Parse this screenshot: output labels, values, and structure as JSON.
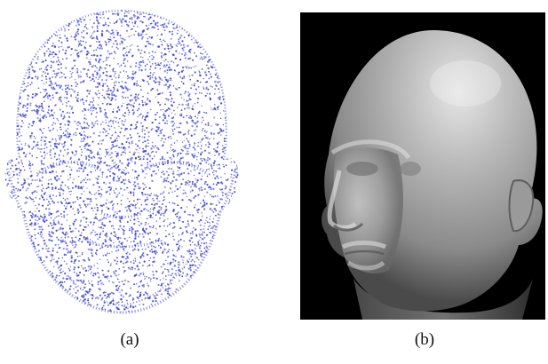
{
  "figure": {
    "panels": [
      {
        "caption": "(a)",
        "depiction": "point-cloud-face",
        "point_color": "#3b3fd0",
        "background": "#ffffff"
      },
      {
        "caption": "(b)",
        "depiction": "shaded-3d-face-mesh",
        "surface_color": "#a9a9a9",
        "background": "#000000"
      }
    ]
  }
}
